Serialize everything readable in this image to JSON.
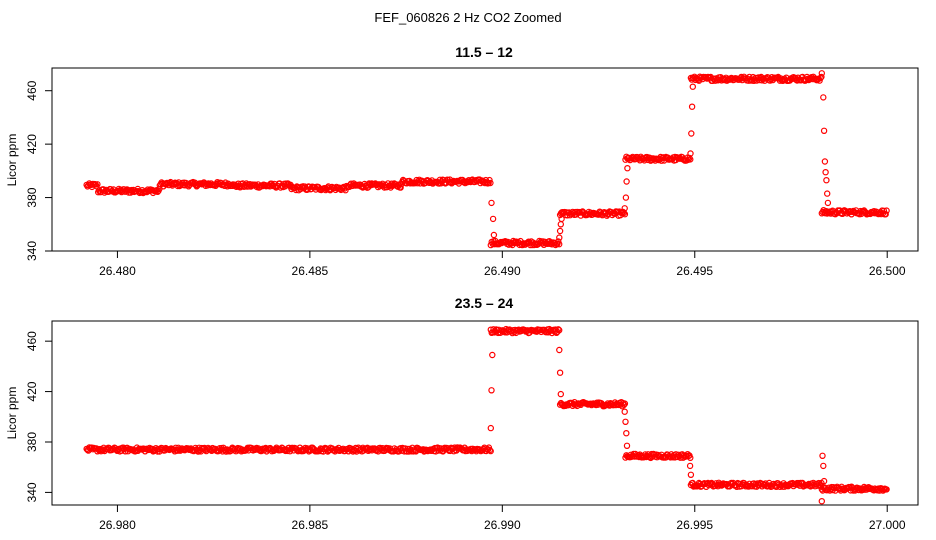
{
  "figure": {
    "title": "FEF_060826  2 Hz CO2 Zoomed"
  },
  "chart_data": [
    {
      "type": "scatter",
      "title": "11.5 – 12",
      "xlabel": "",
      "ylabel": "Licor ppm",
      "xlim": [
        26.4783,
        26.5008
      ],
      "ylim": [
        340,
        477
      ],
      "x_ticks": [
        "26.480",
        "26.485",
        "26.490",
        "26.495",
        "26.500"
      ],
      "x_tick_values": [
        26.48,
        26.485,
        26.49,
        26.495,
        26.5
      ],
      "y_ticks": [
        "340",
        "380",
        "420",
        "460"
      ],
      "y_tick_values": [
        340,
        380,
        420,
        460
      ],
      "marker": "open-circle",
      "color": "#ff0000",
      "grid": false,
      "segments": [
        {
          "x_start": 26.4792,
          "x_end": 26.4795,
          "y": 389
        },
        {
          "x_start": 26.4795,
          "x_end": 26.4811,
          "y": 385
        },
        {
          "x_start": 26.4811,
          "x_end": 26.483,
          "y": 390
        },
        {
          "x_start": 26.483,
          "x_end": 26.4845,
          "y": 389
        },
        {
          "x_start": 26.4845,
          "x_end": 26.486,
          "y": 387
        },
        {
          "x_start": 26.486,
          "x_end": 26.4874,
          "y": 389
        },
        {
          "x_start": 26.4874,
          "x_end": 26.4897,
          "y": 392
        },
        {
          "x_start": 26.4897,
          "x_end": 26.4915,
          "y": 346
        },
        {
          "x_start": 26.4915,
          "x_end": 26.4932,
          "y": 368
        },
        {
          "x_start": 26.4932,
          "x_end": 26.4949,
          "y": 409
        },
        {
          "x_start": 26.4949,
          "x_end": 26.4983,
          "y": 469
        },
        {
          "x_start": 26.4983,
          "x_end": 26.5,
          "y": 369
        }
      ],
      "transition_points": [
        [
          26.48972,
          376
        ],
        [
          26.48976,
          364
        ],
        [
          26.48978,
          352
        ],
        [
          26.49148,
          350
        ],
        [
          26.4915,
          355
        ],
        [
          26.49152,
          360
        ],
        [
          26.49154,
          364
        ],
        [
          26.49318,
          372
        ],
        [
          26.49321,
          380
        ],
        [
          26.49323,
          392
        ],
        [
          26.49325,
          402
        ],
        [
          26.49489,
          413
        ],
        [
          26.49491,
          428
        ],
        [
          26.49493,
          448
        ],
        [
          26.49495,
          463
        ],
        [
          26.49834,
          455
        ],
        [
          26.49836,
          430
        ],
        [
          26.49838,
          407
        ],
        [
          26.4984,
          399
        ],
        [
          26.49842,
          393
        ],
        [
          26.49844,
          383
        ],
        [
          26.49846,
          376
        ],
        [
          26.4983,
          473
        ]
      ]
    },
    {
      "type": "scatter",
      "title": "23.5 – 24",
      "xlabel": "",
      "ylabel": "Licor ppm",
      "xlim": [
        26.9783,
        27.0008
      ],
      "ylim": [
        330,
        476
      ],
      "x_ticks": [
        "26.980",
        "26.985",
        "26.990",
        "26.995",
        "27.000"
      ],
      "x_tick_values": [
        26.98,
        26.985,
        26.99,
        26.995,
        27.0
      ],
      "y_ticks": [
        "340",
        "380",
        "420",
        "460"
      ],
      "y_tick_values": [
        340,
        380,
        420,
        460
      ],
      "marker": "open-circle",
      "color": "#ff0000",
      "grid": false,
      "segments": [
        {
          "x_start": 26.9792,
          "x_end": 26.9897,
          "y": 374
        },
        {
          "x_start": 26.9897,
          "x_end": 26.9915,
          "y": 468
        },
        {
          "x_start": 26.9915,
          "x_end": 26.9932,
          "y": 410
        },
        {
          "x_start": 26.9932,
          "x_end": 26.9949,
          "y": 369
        },
        {
          "x_start": 26.9949,
          "x_end": 26.9983,
          "y": 346
        },
        {
          "x_start": 26.9983,
          "x_end": 27.0,
          "y": 343
        }
      ],
      "transition_points": [
        [
          26.9897,
          391
        ],
        [
          26.98972,
          421
        ],
        [
          26.98974,
          449
        ],
        [
          26.99148,
          453
        ],
        [
          26.9915,
          435
        ],
        [
          26.99152,
          418
        ],
        [
          26.99318,
          404
        ],
        [
          26.9932,
          396
        ],
        [
          26.99322,
          387
        ],
        [
          26.99324,
          377
        ],
        [
          26.99488,
          361
        ],
        [
          26.9949,
          354
        ],
        [
          26.99832,
          369
        ],
        [
          26.99834,
          361
        ],
        [
          26.9983,
          333
        ],
        [
          26.99836,
          349
        ]
      ]
    }
  ]
}
